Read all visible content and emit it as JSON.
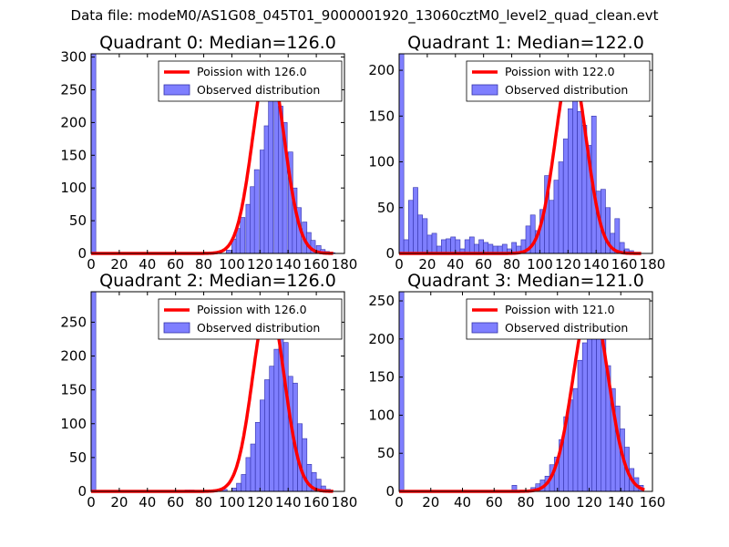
{
  "figure_title": "Data file: modeM0/AS1G08_045T01_9000001920_13060cztM0_level2_quad_clean.evt",
  "colors": {
    "poisson": "#ff0000",
    "bar_fill": "#7f7fff",
    "bar_edge": "#3333aa"
  },
  "chart_data": [
    {
      "type": "bar",
      "title": "Quadrant 0: Median=126.0",
      "xlim": [
        0,
        180
      ],
      "ylim": [
        0,
        305
      ],
      "xticks": [
        "0",
        "20",
        "40",
        "60",
        "80",
        "100",
        "120",
        "140",
        "160",
        "180"
      ],
      "xtick_values": [
        0,
        20,
        40,
        60,
        80,
        100,
        120,
        140,
        160,
        180
      ],
      "yticks": [
        "0",
        "50",
        "100",
        "150",
        "200",
        "250",
        "300"
      ],
      "ytick_values": [
        0,
        50,
        100,
        150,
        200,
        250,
        300
      ],
      "legend": {
        "line_label": "Poission with 126.0",
        "bar_label": "Observed distribution",
        "placement": "top-right"
      },
      "bin_width": 3.33,
      "bars": [
        [
          0,
          305
        ],
        [
          96,
          5
        ],
        [
          100,
          22
        ],
        [
          103,
          38
        ],
        [
          106,
          55
        ],
        [
          110,
          75
        ],
        [
          113,
          102
        ],
        [
          116,
          128
        ],
        [
          120,
          158
        ],
        [
          123,
          195
        ],
        [
          126,
          238
        ],
        [
          130,
          265
        ],
        [
          133,
          225
        ],
        [
          136,
          200
        ],
        [
          140,
          155
        ],
        [
          143,
          100
        ],
        [
          146,
          70
        ],
        [
          150,
          48
        ],
        [
          153,
          32
        ],
        [
          156,
          20
        ],
        [
          160,
          12
        ],
        [
          163,
          6
        ],
        [
          166,
          3
        ],
        [
          170,
          1
        ]
      ],
      "poisson": {
        "mean": 126.0,
        "peak": 292,
        "sigma": 11.2,
        "x_start": 0,
        "x_end": 172
      }
    },
    {
      "type": "bar",
      "title": "Quadrant 1: Median=122.0",
      "xlim": [
        0,
        180
      ],
      "ylim": [
        0,
        218
      ],
      "xticks": [
        "0",
        "20",
        "40",
        "60",
        "80",
        "100",
        "120",
        "140",
        "160",
        "180"
      ],
      "xtick_values": [
        0,
        20,
        40,
        60,
        80,
        100,
        120,
        140,
        160,
        180
      ],
      "yticks": [
        "0",
        "50",
        "100",
        "150",
        "200"
      ],
      "ytick_values": [
        0,
        50,
        100,
        150,
        200
      ],
      "legend": {
        "line_label": "Poission with 122.0",
        "bar_label": "Observed distribution",
        "placement": "top-right"
      },
      "bin_width": 3.33,
      "bars": [
        [
          0,
          218
        ],
        [
          3.3,
          15
        ],
        [
          6.7,
          58
        ],
        [
          10,
          72
        ],
        [
          13.3,
          42
        ],
        [
          16.7,
          38
        ],
        [
          20,
          20
        ],
        [
          23.3,
          22
        ],
        [
          26.7,
          8
        ],
        [
          30,
          15
        ],
        [
          33.3,
          16
        ],
        [
          36.7,
          18
        ],
        [
          40,
          15
        ],
        [
          43.3,
          5
        ],
        [
          46.7,
          15
        ],
        [
          50,
          18
        ],
        [
          53.3,
          10
        ],
        [
          56.7,
          15
        ],
        [
          60,
          12
        ],
        [
          63.3,
          10
        ],
        [
          66.7,
          8
        ],
        [
          70,
          8
        ],
        [
          73.3,
          10
        ],
        [
          76.7,
          5
        ],
        [
          80,
          12
        ],
        [
          83.3,
          8
        ],
        [
          86.7,
          15
        ],
        [
          90,
          30
        ],
        [
          93.3,
          42
        ],
        [
          96.7,
          25
        ],
        [
          100,
          48
        ],
        [
          103.3,
          85
        ],
        [
          106.7,
          58
        ],
        [
          110,
          80
        ],
        [
          113.3,
          100
        ],
        [
          116.7,
          125
        ],
        [
          120,
          158
        ],
        [
          123.3,
          200
        ],
        [
          126.7,
          155
        ],
        [
          130,
          140
        ],
        [
          133.3,
          118
        ],
        [
          136.7,
          150
        ],
        [
          140,
          68
        ],
        [
          143.3,
          70
        ],
        [
          146.7,
          50
        ],
        [
          150,
          22
        ],
        [
          153.3,
          38
        ],
        [
          156.7,
          12
        ],
        [
          160,
          5
        ],
        [
          163.3,
          3
        ],
        [
          166.7,
          1
        ]
      ],
      "poisson": {
        "mean": 122.0,
        "peak": 205,
        "sigma": 11.0,
        "x_start": 0,
        "x_end": 172
      }
    },
    {
      "type": "bar",
      "title": "Quadrant 2: Median=126.0",
      "xlim": [
        0,
        180
      ],
      "ylim": [
        0,
        295
      ],
      "xticks": [
        "0",
        "20",
        "40",
        "60",
        "80",
        "100",
        "120",
        "140",
        "160",
        "180"
      ],
      "xtick_values": [
        0,
        20,
        40,
        60,
        80,
        100,
        120,
        140,
        160,
        180
      ],
      "yticks": [
        "0",
        "50",
        "100",
        "150",
        "200",
        "250"
      ],
      "ytick_values": [
        0,
        50,
        100,
        150,
        200,
        250
      ],
      "legend": {
        "line_label": "Poission with 126.0",
        "bar_label": "Observed distribution",
        "placement": "top-right"
      },
      "bin_width": 3.33,
      "bars": [
        [
          0,
          295
        ],
        [
          66.7,
          2
        ],
        [
          70,
          2
        ],
        [
          93.3,
          3
        ],
        [
          100,
          5
        ],
        [
          103.3,
          12
        ],
        [
          106.7,
          25
        ],
        [
          110,
          50
        ],
        [
          113.3,
          70
        ],
        [
          116.7,
          102
        ],
        [
          120,
          135
        ],
        [
          123.3,
          165
        ],
        [
          126.7,
          185
        ],
        [
          130,
          210
        ],
        [
          133.3,
          250
        ],
        [
          136.7,
          220
        ],
        [
          140,
          170
        ],
        [
          143.3,
          160
        ],
        [
          146.7,
          100
        ],
        [
          150,
          78
        ],
        [
          153.3,
          40
        ],
        [
          156.7,
          28
        ],
        [
          160,
          18
        ],
        [
          163.3,
          8
        ],
        [
          166.7,
          3
        ]
      ],
      "poisson": {
        "mean": 126.0,
        "peak": 280,
        "sigma": 11.2,
        "x_start": 0,
        "x_end": 172
      }
    },
    {
      "type": "bar",
      "title": "Quadrant 3: Median=121.0",
      "xlim": [
        0,
        160
      ],
      "ylim": [
        0,
        262
      ],
      "xticks": [
        "0",
        "20",
        "40",
        "60",
        "80",
        "100",
        "120",
        "140",
        "160"
      ],
      "xtick_values": [
        0,
        20,
        40,
        60,
        80,
        100,
        120,
        140,
        160
      ],
      "yticks": [
        "0",
        "50",
        "100",
        "150",
        "200",
        "250"
      ],
      "ytick_values": [
        0,
        50,
        100,
        150,
        200,
        250
      ],
      "legend": {
        "line_label": "Poission with 121.0",
        "bar_label": "Observed distribution",
        "placement": "top-right"
      },
      "bin_width": 2.97,
      "bars": [
        [
          0,
          262
        ],
        [
          71.3,
          8
        ],
        [
          83.2,
          5
        ],
        [
          86.2,
          10
        ],
        [
          89.1,
          15
        ],
        [
          92.1,
          20
        ],
        [
          95,
          35
        ],
        [
          98,
          45
        ],
        [
          101,
          68
        ],
        [
          104,
          98
        ],
        [
          106.9,
          120
        ],
        [
          109.9,
          135
        ],
        [
          112.8,
          172
        ],
        [
          115.8,
          195
        ],
        [
          118.8,
          225
        ],
        [
          121.7,
          245
        ],
        [
          124.7,
          235
        ],
        [
          127.6,
          200
        ],
        [
          130.6,
          165
        ],
        [
          133.6,
          135
        ],
        [
          136.5,
          112
        ],
        [
          139.5,
          82
        ],
        [
          142.4,
          58
        ],
        [
          145.4,
          30
        ],
        [
          148.4,
          18
        ],
        [
          151.3,
          8
        ]
      ],
      "poisson": {
        "mean": 121.0,
        "peak": 250,
        "sigma": 11.0,
        "x_start": 0,
        "x_end": 155
      }
    }
  ]
}
